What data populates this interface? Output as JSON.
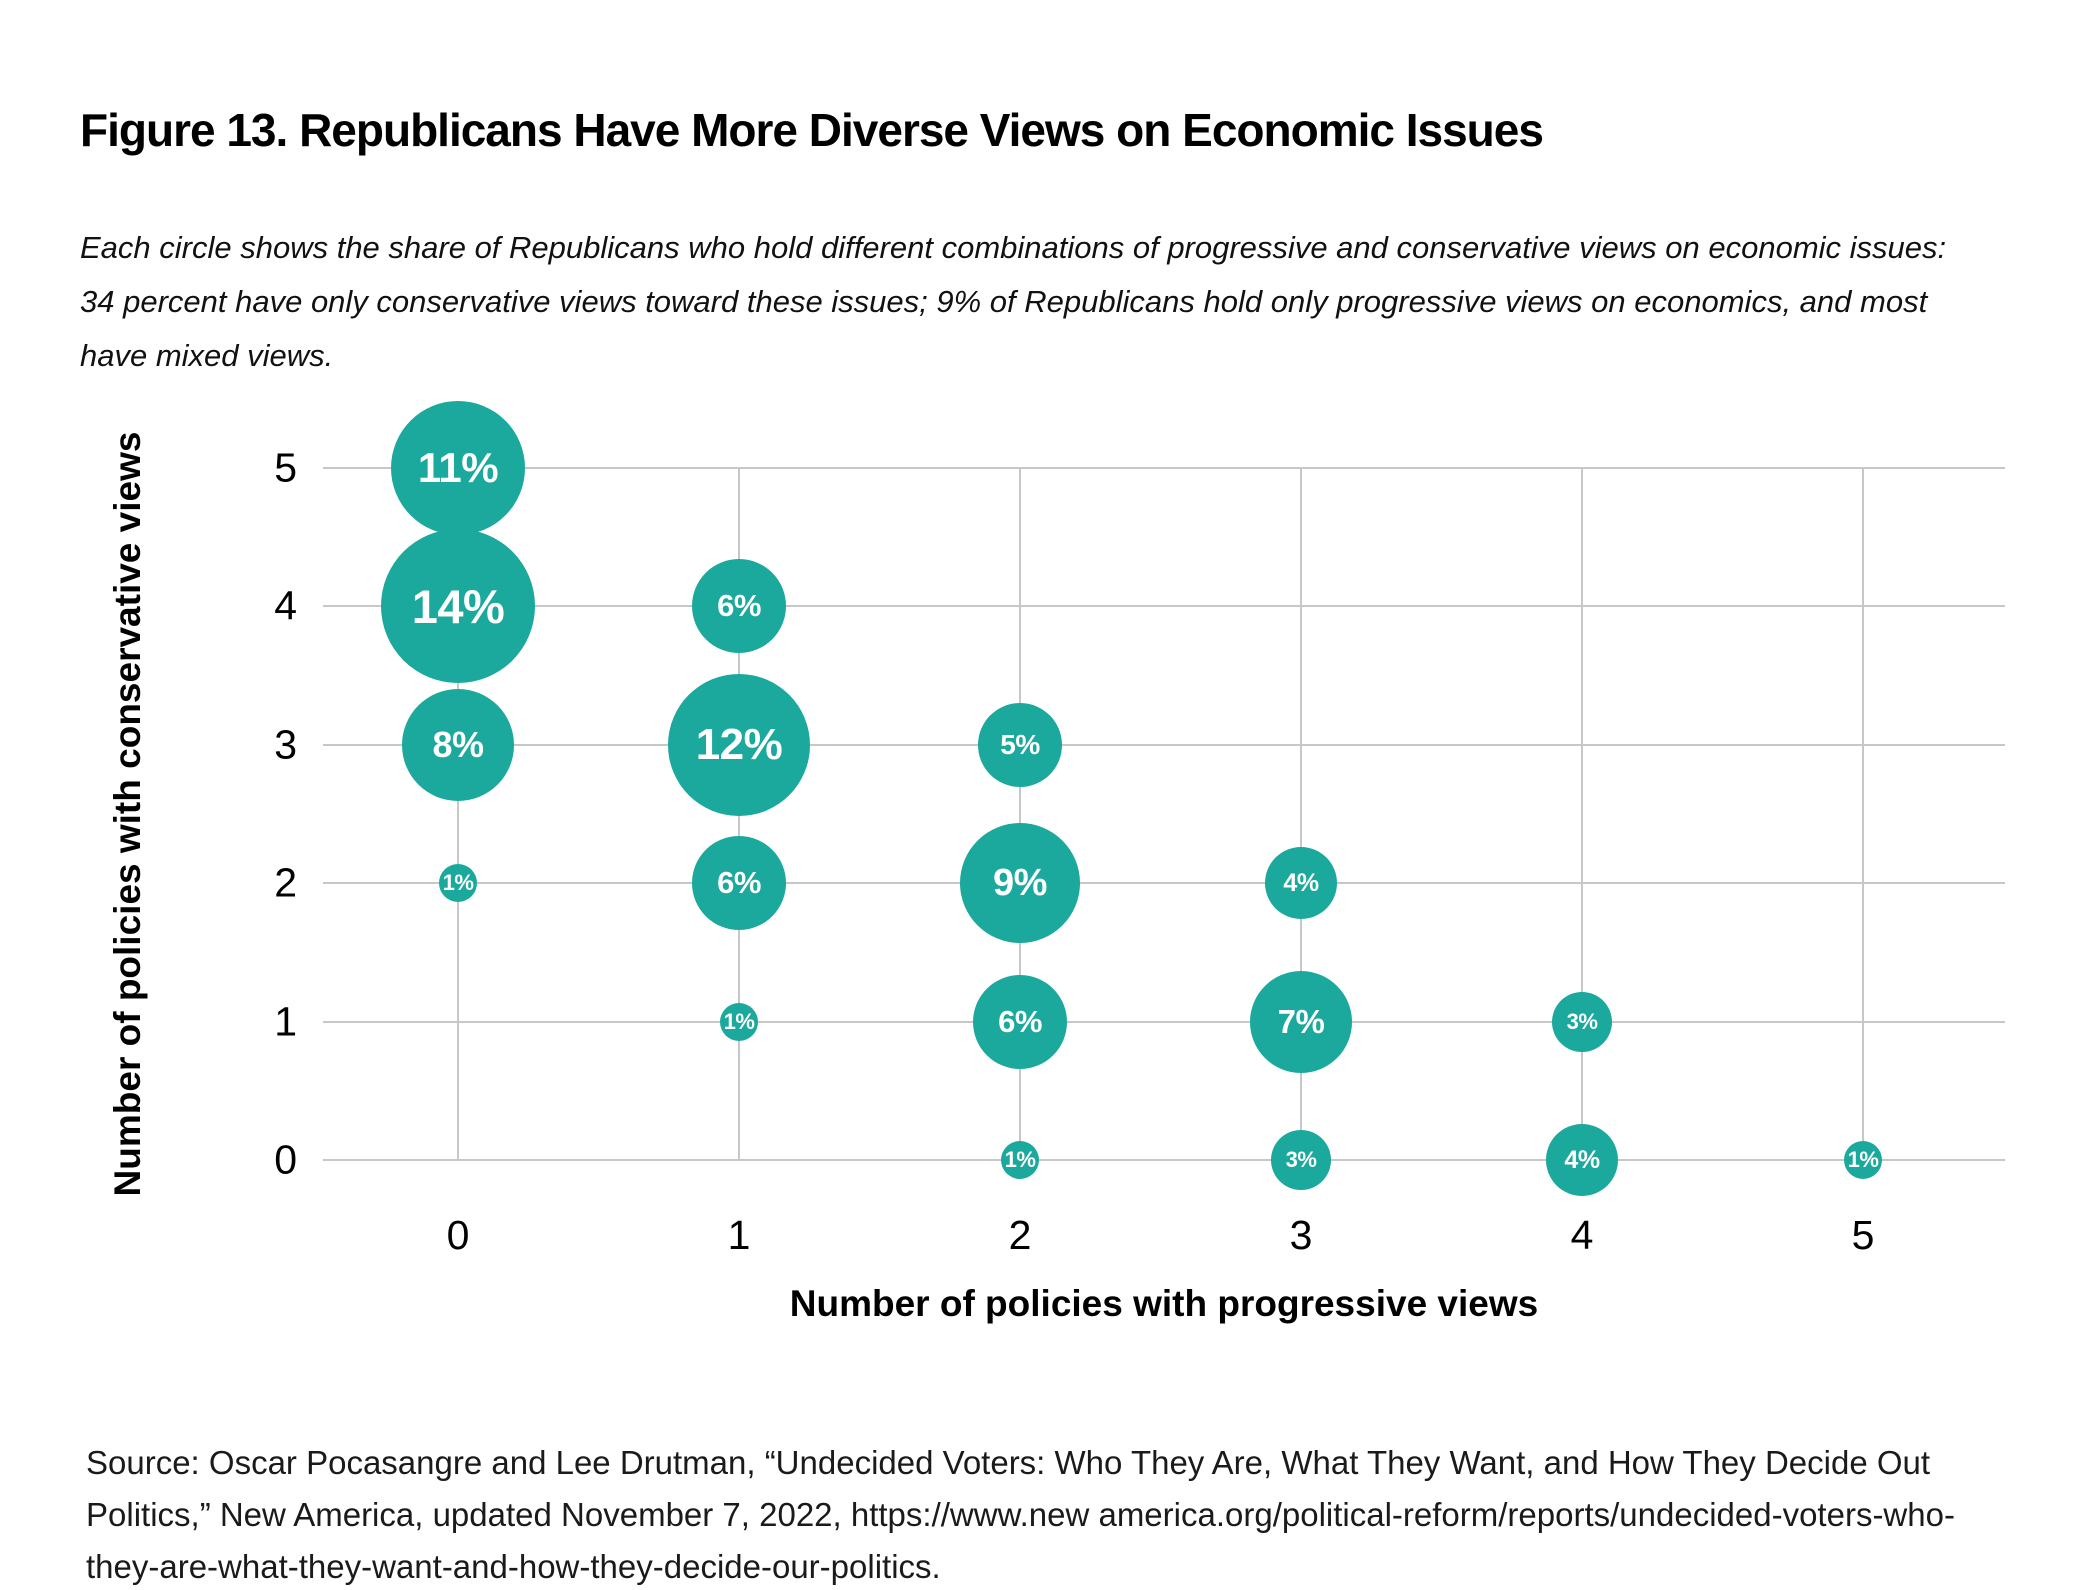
{
  "title": "Figure 13. Republicans Have More Diverse Views on Economic Issues",
  "subtitle": "Each circle shows the share of Republicans who hold different combinations of progressive and conservative views on economic issues: 34 percent have only conservative views toward these issues; 9% of Republicans hold only progressive views on economics, and most have mixed views.",
  "source": "Source: Oscar Pocasangre and Lee Drutman, “Undecided Voters: Who They Are, What They Want, and How They Decide Out Politics,” New America, updated November 7, 2022, https://www.new america.org/political-reform/reports/undecided-voters-who-they-are-what-they-want-and-how-they-decide-our-politics.",
  "colors": {
    "bubble": "#1BA89D",
    "bubble_label": "#FFFFFF",
    "gridline": "#C7C7C7",
    "text": "#000000"
  },
  "chart_data": {
    "type": "scatter",
    "subtype": "bubble",
    "xlabel": "Number of policies with progressive views",
    "ylabel": "Number of policies with conservative views",
    "x_ticks": [
      0,
      1,
      2,
      3,
      4,
      5
    ],
    "y_ticks": [
      0,
      1,
      2,
      3,
      4,
      5
    ],
    "xlim": [
      -0.5,
      5.5
    ],
    "ylim": [
      -0.2,
      5.5
    ],
    "grid": true,
    "value_unit": "percent of Republicans",
    "points": [
      {
        "x": 0,
        "y": 5,
        "value": 11,
        "label": "11%"
      },
      {
        "x": 0,
        "y": 4,
        "value": 14,
        "label": "14%"
      },
      {
        "x": 0,
        "y": 3,
        "value": 8,
        "label": "8%"
      },
      {
        "x": 0,
        "y": 2,
        "value": 1,
        "label": "1%"
      },
      {
        "x": 1,
        "y": 4,
        "value": 6,
        "label": "6%"
      },
      {
        "x": 1,
        "y": 3,
        "value": 12,
        "label": "12%"
      },
      {
        "x": 1,
        "y": 2,
        "value": 6,
        "label": "6%"
      },
      {
        "x": 1,
        "y": 1,
        "value": 1,
        "label": "1%"
      },
      {
        "x": 2,
        "y": 3,
        "value": 5,
        "label": "5%"
      },
      {
        "x": 2,
        "y": 2,
        "value": 9,
        "label": "9%"
      },
      {
        "x": 2,
        "y": 1,
        "value": 6,
        "label": "6%"
      },
      {
        "x": 2,
        "y": 0,
        "value": 1,
        "label": "1%"
      },
      {
        "x": 3,
        "y": 2,
        "value": 4,
        "label": "4%"
      },
      {
        "x": 3,
        "y": 1,
        "value": 7,
        "label": "7%"
      },
      {
        "x": 3,
        "y": 0,
        "value": 3,
        "label": "3%"
      },
      {
        "x": 4,
        "y": 1,
        "value": 3,
        "label": "3%"
      },
      {
        "x": 4,
        "y": 0,
        "value": 4,
        "label": "4%"
      },
      {
        "x": 5,
        "y": 0,
        "value": 1,
        "label": "1%"
      }
    ]
  }
}
